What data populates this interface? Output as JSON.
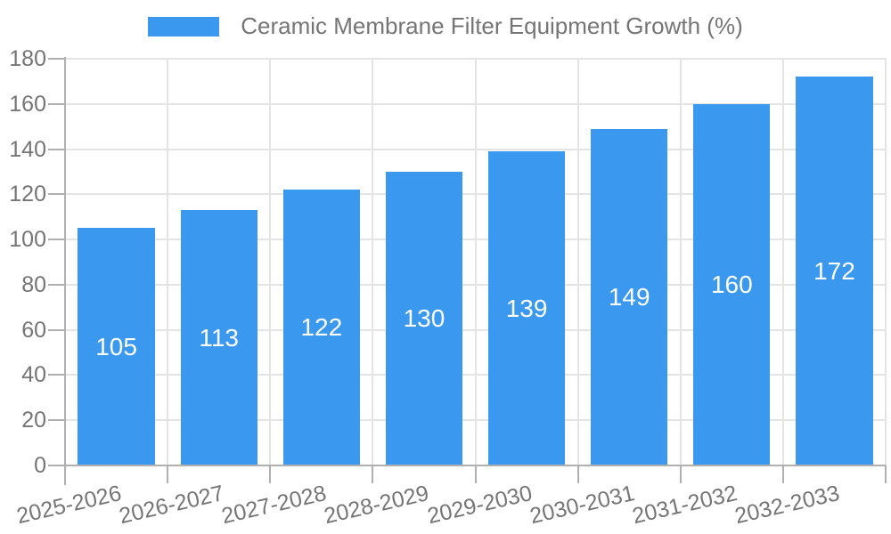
{
  "legend": {
    "label": "Ceramic Membrane Filter Equipment Growth (%)"
  },
  "colors": {
    "bar": "#3a99ee",
    "grid": "#e4e4e4",
    "axis": "#b0b0b0",
    "text": "#757575",
    "value_label": "#ffffff",
    "background": "#ffffff"
  },
  "y_axis": {
    "ticks": [
      0,
      20,
      40,
      60,
      80,
      100,
      120,
      140,
      160,
      180
    ]
  },
  "chart_data": {
    "type": "bar",
    "title": "Ceramic Membrane Filter Equipment Growth (%)",
    "categories": [
      "2025-2026",
      "2026-2027",
      "2027-2028",
      "2028-2029",
      "2029-2030",
      "2030-2031",
      "2031-2032",
      "2032-2033"
    ],
    "values": [
      105,
      113,
      122,
      130,
      139,
      149,
      160,
      172
    ],
    "xlabel": "",
    "ylabel": "",
    "ylim": [
      0,
      180
    ],
    "ytick_step": 20,
    "grid": true,
    "legend_position": "top",
    "value_label_position": "inside-center",
    "x_label_rotation_deg": -13
  }
}
